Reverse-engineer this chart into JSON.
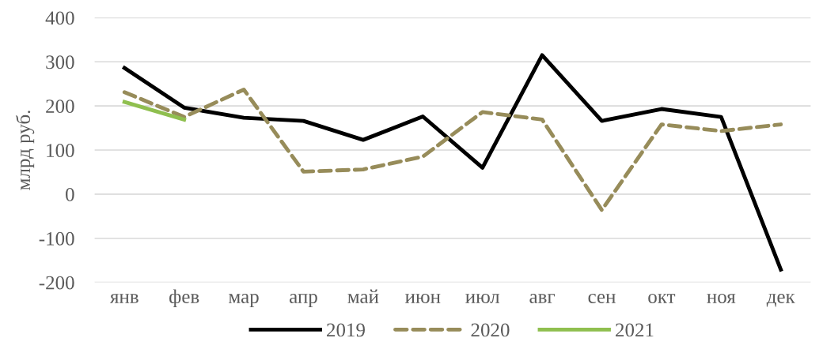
{
  "chart_data": {
    "type": "line",
    "ylabel": "млрд руб.",
    "categories": [
      "янв",
      "фев",
      "мар",
      "апр",
      "май",
      "июн",
      "июл",
      "авг",
      "сен",
      "окт",
      "ноя",
      "дек"
    ],
    "series": [
      {
        "name": "2019",
        "color": "#000000",
        "line_style": "solid",
        "values": [
          286,
          196,
          173,
          166,
          123,
          176,
          60,
          315,
          166,
          193,
          175,
          -171
        ]
      },
      {
        "name": "2020",
        "color": "#978c5a",
        "line_style": "dashed",
        "values": [
          231,
          175,
          237,
          51,
          56,
          85,
          186,
          169,
          -36,
          158,
          143,
          158
        ]
      },
      {
        "name": "2021",
        "color": "#8fbf4f",
        "line_style": "solid",
        "values": [
          209,
          169,
          null,
          null,
          null,
          null,
          null,
          null,
          null,
          null,
          null,
          null
        ]
      }
    ],
    "ylim": [
      -200,
      400
    ],
    "yticks": [
      -200,
      -100,
      0,
      100,
      200,
      300,
      400
    ],
    "grid": "y",
    "legend": "bottom",
    "marker": "none"
  }
}
